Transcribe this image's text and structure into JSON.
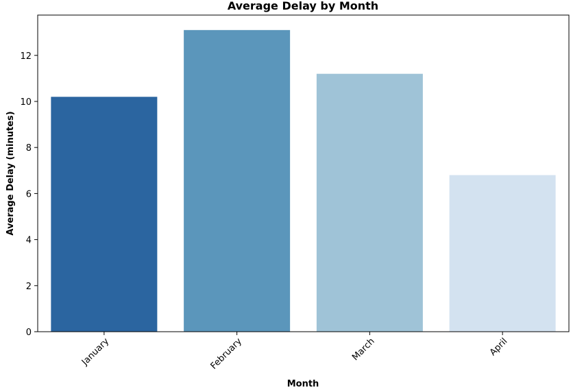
{
  "chart_data": {
    "type": "bar",
    "title": "Average Delay by Month",
    "xlabel": "Month",
    "ylabel": "Average Delay (minutes)",
    "categories": [
      "January",
      "February",
      "March",
      "April"
    ],
    "values": [
      10.2,
      13.1,
      11.2,
      6.8
    ],
    "colors": [
      "#2b65a0",
      "#5b96bb",
      "#9fc3d7",
      "#d3e2f0"
    ],
    "yticks": [
      0,
      2,
      4,
      6,
      8,
      10,
      12
    ],
    "ylim": [
      0,
      13.75
    ],
    "grid": false,
    "legend": "none"
  }
}
